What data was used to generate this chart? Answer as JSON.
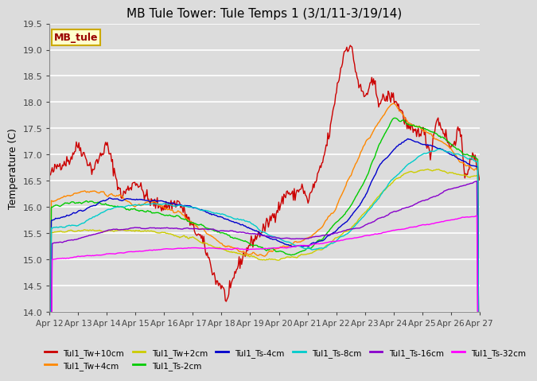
{
  "title": "MB Tule Tower: Tule Temps 1 (3/1/11-3/19/14)",
  "ylabel": "Temperature (C)",
  "ylim": [
    14.0,
    19.5
  ],
  "yticks": [
    14.0,
    14.5,
    15.0,
    15.5,
    16.0,
    16.5,
    17.0,
    17.5,
    18.0,
    18.5,
    19.0,
    19.5
  ],
  "background_color": "#dcdcdc",
  "plot_bg_color": "#dcdcdc",
  "grid_color": "#ffffff",
  "legend_box_fill": "#ffffcc",
  "legend_box_edge": "#ccaa00",
  "mb_tule_text_color": "#990000",
  "series": {
    "Tul1_Tw+10cm": {
      "color": "#cc0000",
      "lw": 1.0
    },
    "Tul1_Tw+4cm": {
      "color": "#ff8800",
      "lw": 1.0
    },
    "Tul1_Tw+2cm": {
      "color": "#cccc00",
      "lw": 1.0
    },
    "Tul1_Ts-2cm": {
      "color": "#00cc00",
      "lw": 1.0
    },
    "Tul1_Ts-4cm": {
      "color": "#0000cc",
      "lw": 1.0
    },
    "Tul1_Ts-8cm": {
      "color": "#00cccc",
      "lw": 1.0
    },
    "Tul1_Ts-16cm": {
      "color": "#8800cc",
      "lw": 1.0
    },
    "Tul1_Ts-32cm": {
      "color": "#ff00ff",
      "lw": 1.0
    }
  },
  "xtick_labels": [
    "Apr 12",
    "Apr 13",
    "Apr 14",
    "Apr 15",
    "Apr 16",
    "Apr 17",
    "Apr 18",
    "Apr 19",
    "Apr 20",
    "Apr 21",
    "Apr 22",
    "Apr 23",
    "Apr 24",
    "Apr 25",
    "Apr 26",
    "Apr 27"
  ],
  "xtick_positions": [
    0,
    1,
    2,
    3,
    4,
    5,
    6,
    7,
    8,
    9,
    10,
    11,
    12,
    13,
    14,
    15
  ],
  "legend_row1": [
    "Tul1_Tw+10cm",
    "Tul1_Tw+4cm",
    "Tul1_Tw+2cm",
    "Tul1_Ts-2cm",
    "Tul1_Ts-4cm",
    "Tul1_Ts-8cm"
  ],
  "legend_row2": [
    "Tul1_Ts-16cm",
    "Tul1_Ts-32cm"
  ]
}
